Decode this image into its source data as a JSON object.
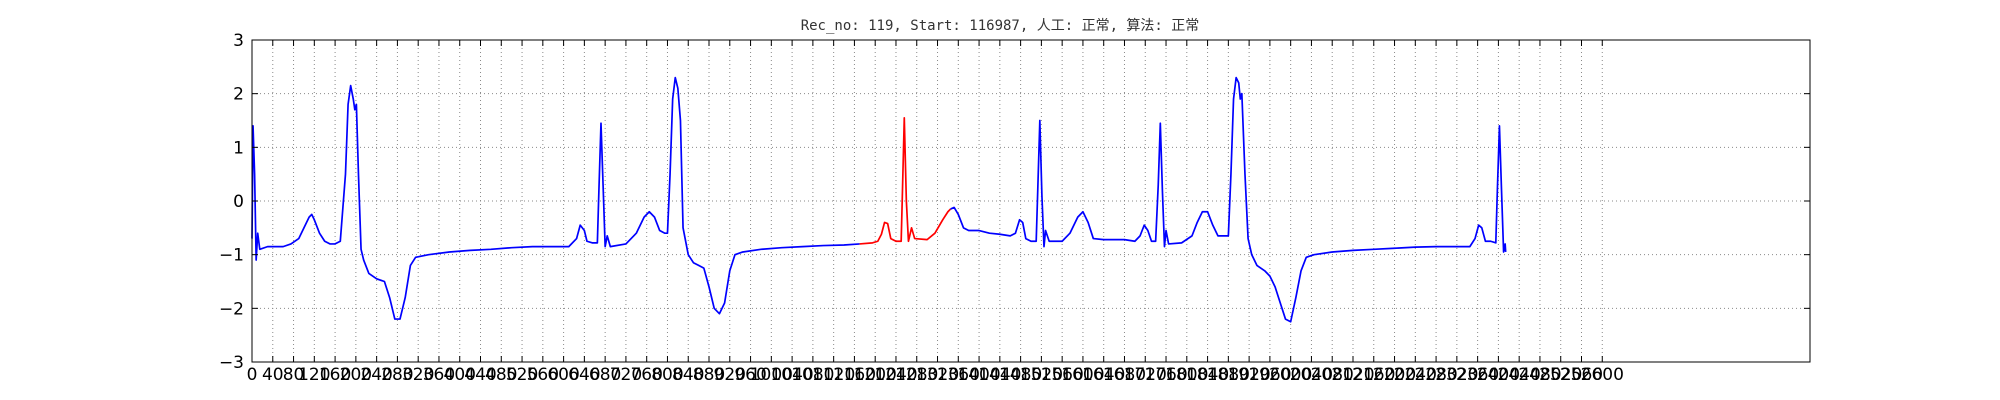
{
  "chart_data": {
    "type": "line",
    "title": "Rec_no: 119, Start: 116987, 人工: 正常, 算法: 正常",
    "xlabel": "",
    "ylabel": "",
    "xlim": [
      0,
      3000
    ],
    "ylim": [
      -3,
      3
    ],
    "grid": true,
    "x_ticks": [
      0,
      40,
      80,
      120,
      160,
      200,
      240,
      280,
      320,
      360,
      400,
      440,
      480,
      520,
      560,
      600,
      640,
      680,
      720,
      760,
      800,
      840,
      880,
      920,
      960,
      1000,
      1040,
      1080,
      1120,
      1160,
      1200,
      1240,
      1280,
      1320,
      1360,
      1400,
      1440,
      1480,
      1520,
      1560,
      1600,
      1640,
      1680,
      1720,
      1760,
      1800,
      1840,
      1880,
      1920,
      1960,
      2000,
      2040,
      2080,
      2120,
      2160,
      2200,
      2240,
      2280,
      2320,
      2360,
      2400,
      2440,
      2480,
      2520,
      2560,
      2600
    ],
    "x_tick_labels": [
      "0",
      "40",
      "80",
      "120",
      "160",
      "200",
      "240",
      "280",
      "320",
      "360",
      "400",
      "440",
      "480",
      "520",
      "560",
      "600",
      "640",
      "680",
      "720",
      "760",
      "800",
      "840",
      "880",
      "920",
      "960",
      "1000",
      "1040",
      "1080",
      "1120",
      "1160",
      "1200",
      "1240",
      "1280",
      "1320",
      "1360",
      "1400",
      "1440",
      "1480",
      "1520",
      "1560",
      "1600",
      "1640",
      "1680",
      "1720",
      "1760",
      "1800",
      "1840",
      "1880",
      "1920",
      "1960",
      "2000",
      "2040",
      "2080",
      "2120",
      "2160",
      "2200",
      "2240",
      "2280",
      "2320",
      "2360",
      "2400",
      "2440",
      "2480",
      "2520",
      "2560",
      "2600"
    ],
    "y_ticks": [
      -3,
      -2,
      -1,
      0,
      1,
      2,
      3
    ],
    "y_tick_labels": [
      "−3",
      "−2",
      "−1",
      "0",
      "1",
      "2",
      "3"
    ],
    "series": [
      {
        "color": "#0000ff",
        "points": [
          [
            0,
            -0.7
          ],
          [
            2,
            1.4
          ],
          [
            5,
            0.5
          ],
          [
            8,
            -1.1
          ],
          [
            11,
            -0.6
          ],
          [
            15,
            -0.9
          ],
          [
            30,
            -0.85
          ],
          [
            60,
            -0.85
          ],
          [
            75,
            -0.8
          ],
          [
            90,
            -0.7
          ],
          [
            100,
            -0.5
          ],
          [
            110,
            -0.3
          ],
          [
            115,
            -0.25
          ],
          [
            120,
            -0.35
          ],
          [
            130,
            -0.6
          ],
          [
            140,
            -0.75
          ],
          [
            150,
            -0.8
          ],
          [
            160,
            -0.8
          ],
          [
            170,
            -0.75
          ],
          [
            180,
            0.5
          ],
          [
            185,
            1.8
          ],
          [
            190,
            2.15
          ],
          [
            195,
            1.9
          ],
          [
            198,
            1.7
          ],
          [
            201,
            1.8
          ],
          [
            205,
            0.5
          ],
          [
            210,
            -0.9
          ],
          [
            215,
            -1.1
          ],
          [
            225,
            -1.35
          ],
          [
            240,
            -1.45
          ],
          [
            255,
            -1.5
          ],
          [
            265,
            -1.8
          ],
          [
            275,
            -2.2
          ],
          [
            285,
            -2.2
          ],
          [
            295,
            -1.8
          ],
          [
            305,
            -1.2
          ],
          [
            315,
            -1.05
          ],
          [
            340,
            -1.0
          ],
          [
            380,
            -0.95
          ],
          [
            420,
            -0.92
          ],
          [
            460,
            -0.9
          ],
          [
            500,
            -0.87
          ],
          [
            540,
            -0.85
          ],
          [
            580,
            -0.85
          ],
          [
            610,
            -0.85
          ],
          [
            625,
            -0.7
          ],
          [
            632,
            -0.45
          ],
          [
            640,
            -0.55
          ],
          [
            645,
            -0.75
          ],
          [
            655,
            -0.78
          ],
          [
            665,
            -0.78
          ],
          [
            668,
            0.2
          ],
          [
            672,
            1.45
          ],
          [
            676,
            0.3
          ],
          [
            680,
            -0.85
          ],
          [
            684,
            -0.65
          ],
          [
            690,
            -0.85
          ],
          [
            720,
            -0.8
          ],
          [
            740,
            -0.6
          ],
          [
            755,
            -0.3
          ],
          [
            765,
            -0.2
          ],
          [
            775,
            -0.3
          ],
          [
            785,
            -0.55
          ],
          [
            795,
            -0.6
          ],
          [
            800,
            -0.6
          ],
          [
            805,
            0.5
          ],
          [
            810,
            1.9
          ],
          [
            815,
            2.3
          ],
          [
            820,
            2.1
          ],
          [
            825,
            1.5
          ],
          [
            830,
            -0.5
          ],
          [
            840,
            -1.0
          ],
          [
            850,
            -1.15
          ],
          [
            860,
            -1.2
          ],
          [
            870,
            -1.25
          ],
          [
            880,
            -1.6
          ],
          [
            890,
            -2.0
          ],
          [
            900,
            -2.1
          ],
          [
            910,
            -1.9
          ],
          [
            920,
            -1.3
          ],
          [
            930,
            -1.0
          ],
          [
            945,
            -0.95
          ],
          [
            980,
            -0.9
          ],
          [
            1020,
            -0.87
          ],
          [
            1060,
            -0.85
          ],
          [
            1100,
            -0.83
          ],
          [
            1140,
            -0.82
          ],
          [
            1170,
            -0.8
          ]
        ]
      },
      {
        "color": "#ff0000",
        "points": [
          [
            1170,
            -0.8
          ],
          [
            1195,
            -0.78
          ],
          [
            1205,
            -0.75
          ],
          [
            1212,
            -0.62
          ],
          [
            1218,
            -0.4
          ],
          [
            1224,
            -0.42
          ],
          [
            1230,
            -0.7
          ],
          [
            1240,
            -0.75
          ],
          [
            1250,
            -0.75
          ],
          [
            1252,
            0.0
          ],
          [
            1256,
            1.55
          ],
          [
            1260,
            0.0
          ],
          [
            1264,
            -0.75
          ],
          [
            1270,
            -0.5
          ],
          [
            1276,
            -0.7
          ],
          [
            1300,
            -0.72
          ],
          [
            1315,
            -0.6
          ],
          [
            1330,
            -0.35
          ],
          [
            1340,
            -0.2
          ],
          [
            1345,
            -0.15
          ]
        ]
      },
      {
        "color": "#0000ff",
        "points": [
          [
            1345,
            -0.15
          ],
          [
            1352,
            -0.12
          ],
          [
            1360,
            -0.25
          ],
          [
            1370,
            -0.5
          ],
          [
            1380,
            -0.55
          ],
          [
            1400,
            -0.55
          ],
          [
            1420,
            -0.6
          ],
          [
            1440,
            -0.62
          ],
          [
            1460,
            -0.65
          ],
          [
            1470,
            -0.6
          ],
          [
            1478,
            -0.35
          ],
          [
            1484,
            -0.4
          ],
          [
            1490,
            -0.7
          ],
          [
            1500,
            -0.75
          ],
          [
            1510,
            -0.75
          ],
          [
            1513,
            0.2
          ],
          [
            1517,
            1.5
          ],
          [
            1521,
            0.1
          ],
          [
            1525,
            -0.85
          ],
          [
            1528,
            -0.55
          ],
          [
            1535,
            -0.75
          ],
          [
            1560,
            -0.75
          ],
          [
            1575,
            -0.6
          ],
          [
            1590,
            -0.3
          ],
          [
            1600,
            -0.2
          ],
          [
            1610,
            -0.4
          ],
          [
            1620,
            -0.7
          ],
          [
            1640,
            -0.72
          ],
          [
            1680,
            -0.72
          ],
          [
            1700,
            -0.75
          ],
          [
            1710,
            -0.65
          ],
          [
            1718,
            -0.45
          ],
          [
            1725,
            -0.55
          ],
          [
            1732,
            -0.75
          ],
          [
            1740,
            -0.75
          ],
          [
            1745,
            0.3
          ],
          [
            1749,
            1.45
          ],
          [
            1753,
            0.2
          ],
          [
            1757,
            -0.85
          ],
          [
            1760,
            -0.55
          ],
          [
            1765,
            -0.8
          ],
          [
            1790,
            -0.78
          ],
          [
            1810,
            -0.65
          ],
          [
            1820,
            -0.4
          ],
          [
            1830,
            -0.2
          ],
          [
            1840,
            -0.2
          ],
          [
            1850,
            -0.45
          ],
          [
            1860,
            -0.65
          ],
          [
            1870,
            -0.65
          ],
          [
            1880,
            -0.65
          ],
          [
            1885,
            0.5
          ],
          [
            1890,
            1.9
          ],
          [
            1895,
            2.3
          ],
          [
            1900,
            2.2
          ],
          [
            1903,
            1.9
          ],
          [
            1906,
            2.0
          ],
          [
            1912,
            0.5
          ],
          [
            1918,
            -0.7
          ],
          [
            1925,
            -1.0
          ],
          [
            1935,
            -1.2
          ],
          [
            1950,
            -1.3
          ],
          [
            1960,
            -1.4
          ],
          [
            1970,
            -1.6
          ],
          [
            1980,
            -1.9
          ],
          [
            1990,
            -2.2
          ],
          [
            2000,
            -2.25
          ],
          [
            2010,
            -1.8
          ],
          [
            2020,
            -1.3
          ],
          [
            2030,
            -1.05
          ],
          [
            2045,
            -1.0
          ],
          [
            2080,
            -0.95
          ],
          [
            2120,
            -0.92
          ],
          [
            2160,
            -0.9
          ],
          [
            2200,
            -0.88
          ],
          [
            2240,
            -0.86
          ],
          [
            2280,
            -0.85
          ],
          [
            2320,
            -0.85
          ],
          [
            2345,
            -0.85
          ],
          [
            2355,
            -0.7
          ],
          [
            2362,
            -0.45
          ],
          [
            2368,
            -0.5
          ],
          [
            2375,
            -0.75
          ],
          [
            2385,
            -0.75
          ],
          [
            2395,
            -0.78
          ],
          [
            2398,
            0.2
          ],
          [
            2402,
            1.4
          ],
          [
            2406,
            0.2
          ],
          [
            2410,
            -0.95
          ],
          [
            2413,
            -0.8
          ],
          [
            2414,
            -0.95
          ]
        ]
      }
    ]
  }
}
